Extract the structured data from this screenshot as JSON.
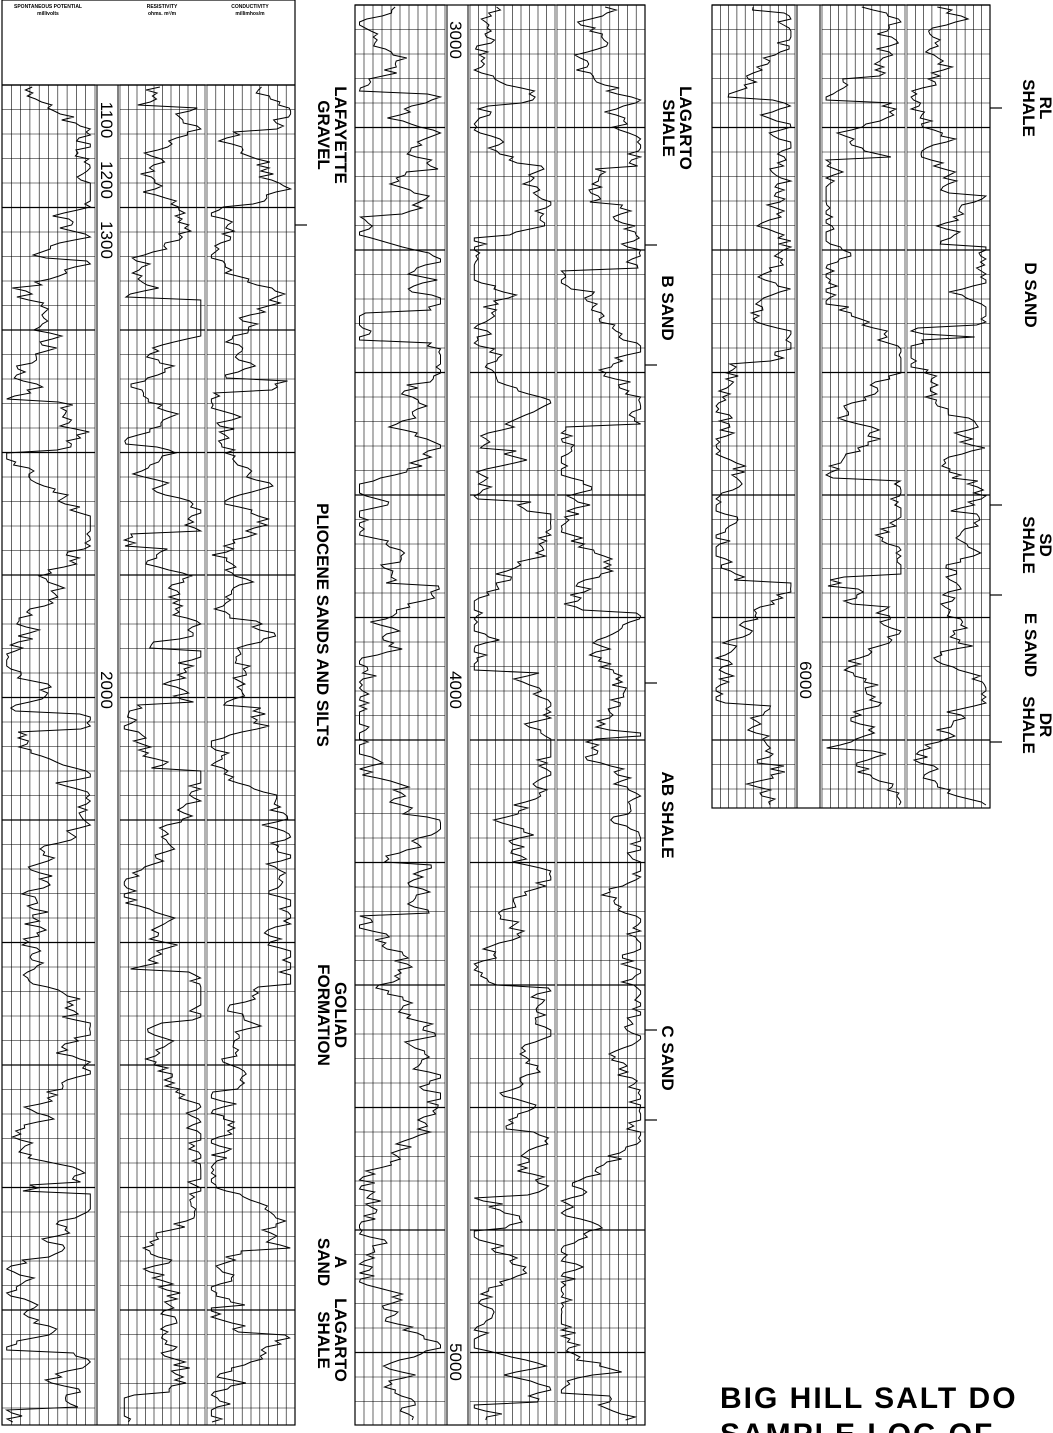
{
  "header": {
    "sp_title": "SPONTANEOUS POTENTIAL",
    "sp_unit": "millivolts",
    "resistivity_title": "RESISTIVITY",
    "resistivity_unit": "ohms. m²/m",
    "conductivity_title": "CONDUCTIVITY",
    "conductivity_unit": "millimhos/m"
  },
  "depth_labels": [
    "1100",
    "1200",
    "1300",
    "2000",
    "3000",
    "4000",
    "5000",
    "6000"
  ],
  "formations": [
    {
      "lines": [
        "LAFAYETTE",
        "GRAVEL"
      ]
    },
    {
      "lines": [
        "PLIOCENE  SANDS AND SILTS"
      ]
    },
    {
      "lines": [
        "GOLIAD",
        "FORMATION"
      ]
    },
    {
      "lines": [
        "A",
        "SAND"
      ]
    },
    {
      "lines": [
        "LAGARTO",
        "SHALE"
      ]
    },
    {
      "lines": [
        "LAGARTO",
        "SHALE"
      ]
    },
    {
      "lines": [
        "B SAND"
      ]
    },
    {
      "lines": [
        "AB SHALE"
      ]
    },
    {
      "lines": [
        "C SAND"
      ]
    },
    {
      "lines": [
        "RL",
        "SHALE"
      ]
    },
    {
      "lines": [
        "D SAND"
      ]
    },
    {
      "lines": [
        "SD",
        "SHALE"
      ]
    },
    {
      "lines": [
        "E SAND"
      ]
    },
    {
      "lines": [
        "DR",
        "SHALE"
      ]
    }
  ],
  "title": [
    "BIG HILL SALT DO",
    "SAMPLE LOG OF"
  ]
}
